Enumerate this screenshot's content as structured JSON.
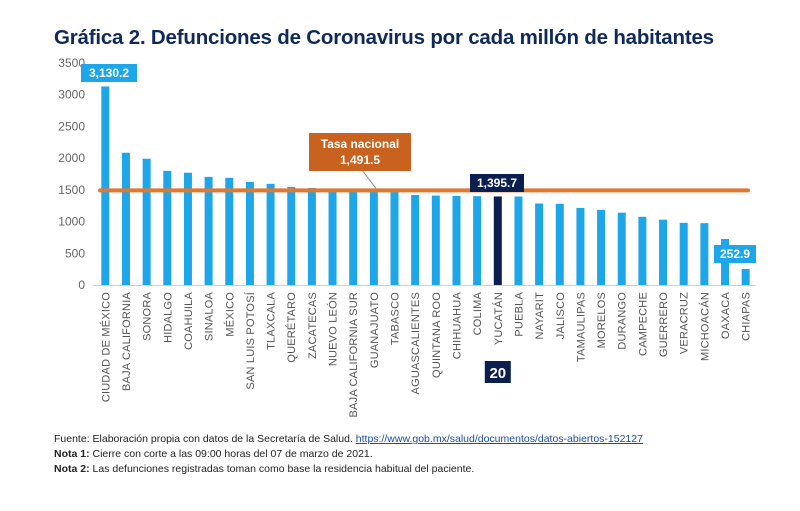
{
  "chart_data": {
    "type": "bar",
    "title": "Gráfica 2. Defunciones de Coronavirus por cada millón de habitantes",
    "xlabel": "",
    "ylabel": "",
    "ylim": [
      0,
      3500
    ],
    "yticks": [
      0,
      500,
      1000,
      1500,
      2000,
      2500,
      3000,
      3500
    ],
    "grid": false,
    "categories": [
      "CIUDAD DE MÉXICO",
      "BAJA CALIFORNIA",
      "SONORA",
      "HIDALGO",
      "COAHUILA",
      "SINALOA",
      "MÉXICO",
      "SAN LUIS POTOSÍ",
      "TLAXCALA",
      "QUERÉTARO",
      "ZACATECAS",
      "NUEVO LEÓN",
      "BAJA CALIFORNIA SUR",
      "GUANAJUATO",
      "TABASCO",
      "AGUASCALIENTES",
      "QUINTANA ROO",
      "CHIHUAHUA",
      "COLIMA",
      "YUCATÁN",
      "PUEBLA",
      "NAYARIT",
      "JALISCO",
      "TAMAULIPAS",
      "MORELOS",
      "DURANGO",
      "CAMPECHE",
      "GUERRERO",
      "VERACRUZ",
      "MICHOACÁN",
      "OAXACA",
      "CHIAPAS"
    ],
    "values": [
      3130.2,
      2085,
      1990,
      1800,
      1770,
      1705,
      1690,
      1625,
      1595,
      1545,
      1530,
      1500,
      1495,
      1490,
      1465,
      1420,
      1410,
      1405,
      1400,
      1395.7,
      1395,
      1285,
      1280,
      1215,
      1185,
      1140,
      1075,
      1030,
      980,
      975,
      725,
      252.9
    ],
    "highlight_index": 19,
    "reference_line": {
      "label": "Tasa nacional",
      "value": 1491.5,
      "value_label": "1,491.5"
    },
    "data_labels": [
      {
        "index": 0,
        "text": "3,130.2"
      },
      {
        "index": 19,
        "text": "1,395.7"
      },
      {
        "index": 31,
        "text": "252.9"
      }
    ],
    "rank_badge": {
      "index": 19,
      "text": "20"
    },
    "colors": {
      "bar": "#1ea7e8",
      "highlight": "#0b1f4f",
      "reference": "#e0782f",
      "reference_label_bg": "#c9621f",
      "title": "#0f2a5a"
    }
  },
  "notes": {
    "source_prefix": "Fuente: Elaboración propia con datos de la Secretaría de Salud. ",
    "source_link": "https://www.gob.mx/salud/documentos/datos-abiertos-152127",
    "note1_label": "Nota 1:",
    "note1_text": " Cierre con corte a las 09:00 horas del 07 de marzo de 2021.",
    "note2_label": "Nota 2:",
    "note2_text": " Las defunciones registradas toman como base la residencia habitual del paciente."
  }
}
